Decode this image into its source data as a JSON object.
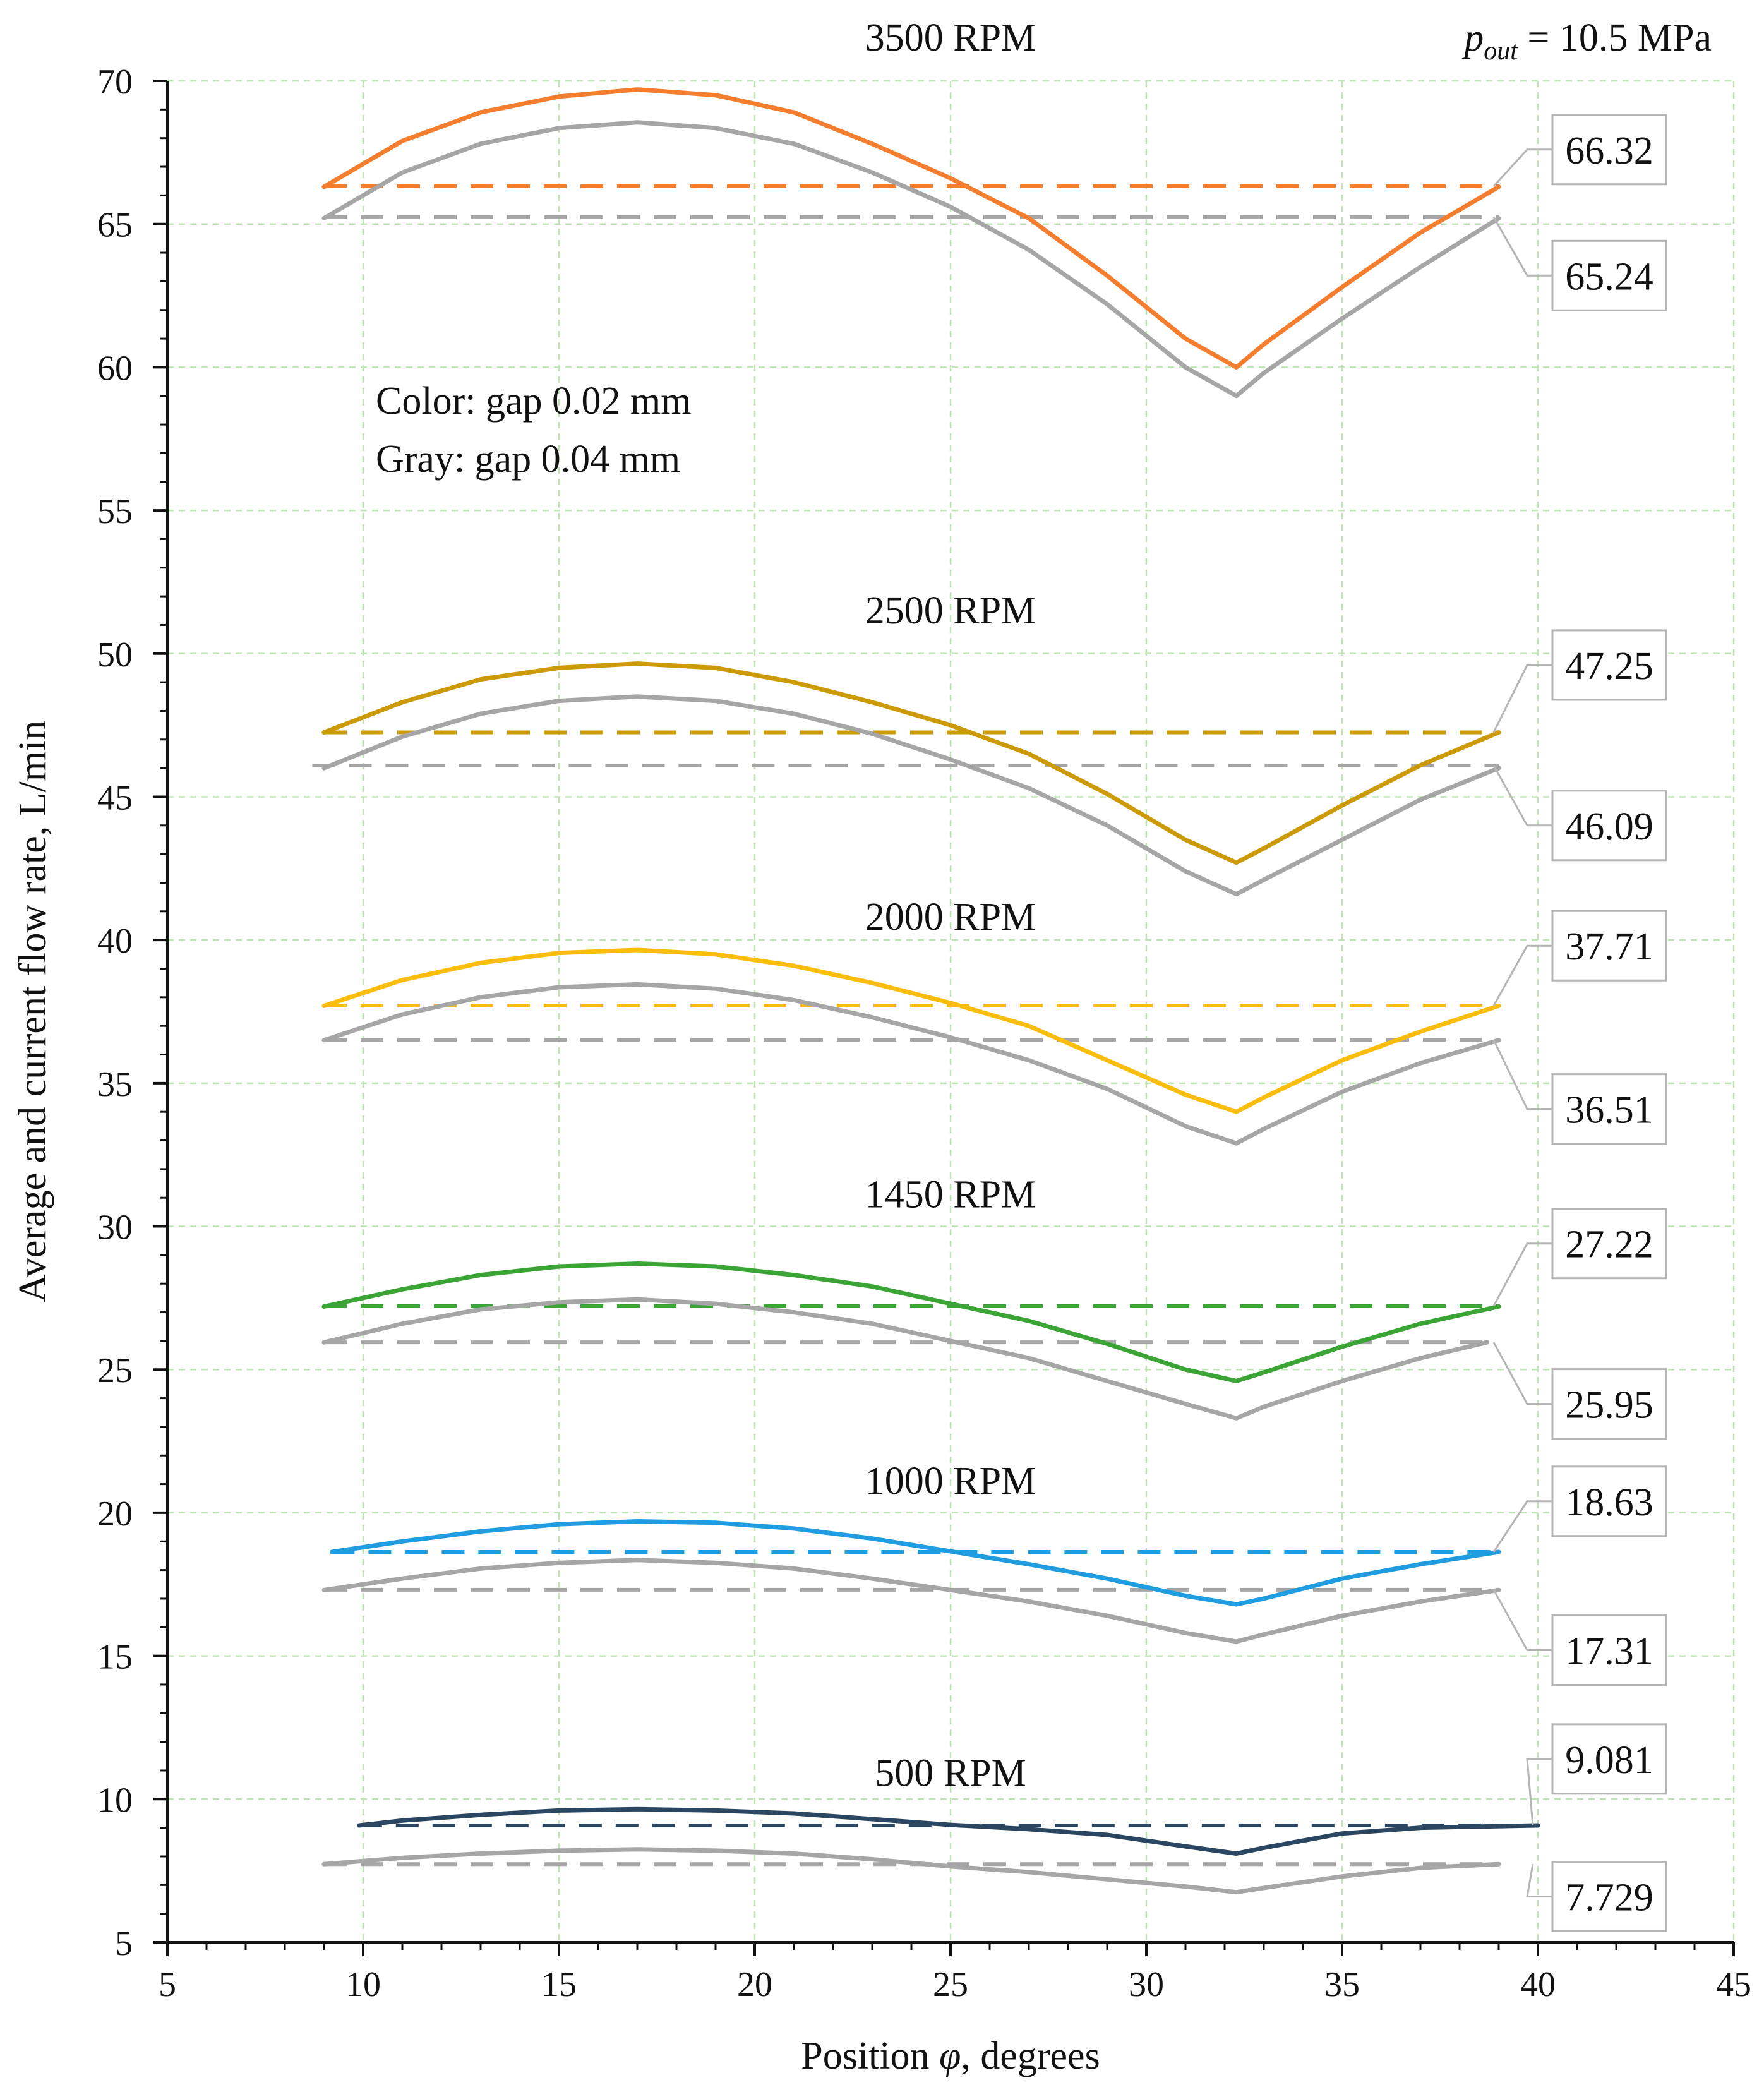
{
  "chart_data": {
    "type": "line",
    "title": "",
    "pressure_label": {
      "symbol": "p",
      "subscript": "out",
      "value": " = 10.5 MPa"
    },
    "xlabel": {
      "prefix": "Position ",
      "symbol": "φ",
      "suffix": ", degrees"
    },
    "ylabel": "Average and current flow rate, L/min",
    "xlim": [
      5,
      45
    ],
    "ylim": [
      5,
      70
    ],
    "xticks": [
      5,
      10,
      15,
      20,
      25,
      30,
      35,
      40,
      45
    ],
    "yticks": [
      5,
      10,
      15,
      20,
      25,
      30,
      35,
      40,
      45,
      50,
      55,
      60,
      65,
      70
    ],
    "grid": true,
    "legend_notes": [
      "Color: gap 0.02 mm",
      "Gray: gap 0.04 mm"
    ],
    "gray_color": "#a6a6a6",
    "groups": [
      {
        "rpm_label": "3500 RPM",
        "label_y": 71.5,
        "color": "#f47e2e",
        "colored": {
          "name": "gap 0.02 mm",
          "avg": 66.32,
          "avg_label": "66.32",
          "x_start": 9,
          "x_end": 39.0,
          "x": [
            9,
            11,
            13,
            15,
            17,
            19,
            21,
            23,
            25,
            27,
            29,
            31,
            32.3,
            33,
            35,
            37,
            39
          ],
          "y": [
            66.3,
            67.9,
            68.9,
            69.45,
            69.7,
            69.5,
            68.9,
            67.8,
            66.6,
            65.2,
            63.2,
            61.0,
            60.0,
            60.8,
            62.8,
            64.7,
            66.3
          ]
        },
        "gray": {
          "name": "gap 0.04 mm",
          "avg": 65.24,
          "avg_label": "65.24",
          "x_start": 9,
          "x_end": 39.0,
          "x": [
            9,
            11,
            13,
            15,
            17,
            19,
            21,
            23,
            25,
            27,
            29,
            31,
            32.3,
            33,
            35,
            37,
            39
          ],
          "y": [
            65.2,
            66.8,
            67.8,
            68.35,
            68.55,
            68.35,
            67.8,
            66.8,
            65.6,
            64.1,
            62.2,
            60.0,
            59.0,
            59.8,
            61.7,
            63.5,
            65.2
          ]
        },
        "callout_top": {
          "value": "66.32",
          "box_y": 67.6
        },
        "callout_bottom": {
          "value": "65.24",
          "box_y": 63.2
        }
      },
      {
        "rpm_label": "2500 RPM",
        "label_y": 51.5,
        "color": "#cc9a06",
        "colored": {
          "name": "gap 0.02 mm",
          "avg": 47.25,
          "avg_label": "47.25",
          "x_start": 9,
          "x_end": 39.0,
          "x": [
            9,
            11,
            13,
            15,
            17,
            19,
            21,
            23,
            25,
            27,
            29,
            31,
            32.3,
            33,
            35,
            37,
            39
          ],
          "y": [
            47.25,
            48.3,
            49.1,
            49.5,
            49.65,
            49.5,
            49.0,
            48.3,
            47.5,
            46.5,
            45.1,
            43.5,
            42.7,
            43.2,
            44.7,
            46.1,
            47.25
          ]
        },
        "gray": {
          "name": "gap 0.04 mm",
          "avg": 46.09,
          "avg_label": "46.09",
          "x_start": 8.7,
          "x_end": 39.0,
          "x": [
            9,
            11,
            13,
            15,
            17,
            19,
            21,
            23,
            25,
            27,
            29,
            31,
            32.3,
            33,
            35,
            37,
            39
          ],
          "y": [
            46.0,
            47.1,
            47.9,
            48.35,
            48.5,
            48.35,
            47.9,
            47.2,
            46.3,
            45.3,
            44.0,
            42.4,
            41.6,
            42.1,
            43.5,
            44.9,
            46.0
          ]
        },
        "callout_top": {
          "value": "47.25",
          "box_y": 49.6
        },
        "callout_bottom": {
          "value": "46.09",
          "box_y": 44.0
        }
      },
      {
        "rpm_label": "2000 RPM",
        "label_y": 40.8,
        "color": "#fbbd0c",
        "colored": {
          "name": "gap 0.02 mm",
          "avg": 37.71,
          "avg_label": "37.71",
          "x_start": 9,
          "x_end": 39.0,
          "x": [
            9,
            11,
            13,
            15,
            17,
            19,
            21,
            23,
            25,
            27,
            29,
            31,
            32.3,
            33,
            35,
            37,
            39
          ],
          "y": [
            37.7,
            38.6,
            39.2,
            39.55,
            39.65,
            39.5,
            39.1,
            38.5,
            37.8,
            37.0,
            35.8,
            34.6,
            34.0,
            34.5,
            35.8,
            36.8,
            37.7
          ]
        },
        "gray": {
          "name": "gap 0.04 mm",
          "avg": 36.51,
          "avg_label": "36.51",
          "x_start": 9,
          "x_end": 39.0,
          "x": [
            9,
            11,
            13,
            15,
            17,
            19,
            21,
            23,
            25,
            27,
            29,
            31,
            32.3,
            33,
            35,
            37,
            39
          ],
          "y": [
            36.5,
            37.4,
            38.0,
            38.35,
            38.45,
            38.3,
            37.9,
            37.3,
            36.6,
            35.8,
            34.8,
            33.5,
            32.9,
            33.4,
            34.7,
            35.7,
            36.5
          ]
        },
        "callout_top": {
          "value": "37.71",
          "box_y": 39.8
        },
        "callout_bottom": {
          "value": "36.51",
          "box_y": 34.1
        }
      },
      {
        "rpm_label": "1450 RPM",
        "label_y": 31.1,
        "color": "#3aa535",
        "colored": {
          "name": "gap 0.02 mm",
          "avg": 27.22,
          "avg_label": "27.22",
          "x_start": 9,
          "x_end": 39.0,
          "x": [
            9,
            11,
            13,
            15,
            17,
            19,
            21,
            23,
            25,
            27,
            29,
            31,
            32.3,
            33,
            35,
            37,
            39
          ],
          "y": [
            27.2,
            27.8,
            28.3,
            28.6,
            28.7,
            28.6,
            28.3,
            27.9,
            27.3,
            26.7,
            25.9,
            25.0,
            24.6,
            24.9,
            25.8,
            26.6,
            27.2
          ]
        },
        "gray": {
          "name": "gap 0.04 mm",
          "avg": 25.95,
          "avg_label": "25.95",
          "x_start": 9,
          "x_end": 38.7,
          "x": [
            9,
            11,
            13,
            15,
            17,
            19,
            21,
            23,
            25,
            27,
            29,
            31,
            32.3,
            33,
            35,
            37,
            38.7
          ],
          "y": [
            25.95,
            26.6,
            27.1,
            27.35,
            27.45,
            27.3,
            27.0,
            26.6,
            26.0,
            25.4,
            24.6,
            23.8,
            23.3,
            23.7,
            24.6,
            25.4,
            25.95
          ]
        },
        "callout_top": {
          "value": "27.22",
          "box_y": 29.4
        },
        "callout_bottom": {
          "value": "25.95",
          "box_y": 23.8
        }
      },
      {
        "rpm_label": "1000 RPM",
        "label_y": 21.1,
        "color": "#1f9de0",
        "colored": {
          "name": "gap 0.02 mm",
          "avg": 18.63,
          "avg_label": "18.63",
          "x_start": 9.2,
          "x_end": 39.0,
          "x": [
            9.2,
            11,
            13,
            15,
            17,
            19,
            21,
            23,
            25,
            27,
            29,
            31,
            32.3,
            33,
            35,
            37,
            39
          ],
          "y": [
            18.63,
            19.0,
            19.35,
            19.6,
            19.7,
            19.65,
            19.45,
            19.1,
            18.65,
            18.2,
            17.7,
            17.1,
            16.8,
            17.0,
            17.7,
            18.2,
            18.63
          ]
        },
        "gray": {
          "name": "gap 0.04 mm",
          "avg": 17.31,
          "avg_label": "17.31",
          "x_start": 9,
          "x_end": 39.0,
          "x": [
            9,
            11,
            13,
            15,
            17,
            19,
            21,
            23,
            25,
            27,
            29,
            31,
            32.3,
            33,
            35,
            37,
            39
          ],
          "y": [
            17.3,
            17.7,
            18.05,
            18.25,
            18.35,
            18.25,
            18.05,
            17.7,
            17.3,
            16.9,
            16.4,
            15.8,
            15.5,
            15.75,
            16.4,
            16.9,
            17.3
          ]
        },
        "callout_top": {
          "value": "18.63",
          "box_y": 20.4
        },
        "callout_bottom": {
          "value": "17.31",
          "box_y": 15.2
        }
      },
      {
        "rpm_label": "500 RPM",
        "label_y": 10.9,
        "color": "#2a4660",
        "colored": {
          "name": "gap 0.02 mm",
          "avg": 9.081,
          "avg_label": "9.081",
          "x_start": 9.9,
          "x_end": 40.0,
          "x": [
            9.9,
            11,
            13,
            15,
            17,
            19,
            21,
            23,
            25,
            27,
            29,
            31,
            32.3,
            33,
            35,
            37,
            40
          ],
          "y": [
            9.08,
            9.25,
            9.45,
            9.6,
            9.65,
            9.6,
            9.5,
            9.3,
            9.1,
            8.95,
            8.75,
            8.35,
            8.1,
            8.3,
            8.8,
            9.0,
            9.08
          ]
        },
        "gray": {
          "name": "gap 0.04 mm",
          "avg": 7.729,
          "avg_label": "7.729",
          "x_start": 9,
          "x_end": 39.0,
          "x": [
            9,
            11,
            13,
            15,
            17,
            19,
            21,
            23,
            25,
            27,
            29,
            31,
            32.3,
            33,
            35,
            37,
            39
          ],
          "y": [
            7.73,
            7.95,
            8.1,
            8.2,
            8.25,
            8.2,
            8.1,
            7.9,
            7.65,
            7.45,
            7.2,
            6.95,
            6.75,
            6.9,
            7.3,
            7.6,
            7.73
          ]
        },
        "callout_top": {
          "value": "9.081",
          "box_y": 11.4
        },
        "callout_bottom": {
          "value": "7.729",
          "box_y": 6.6
        }
      }
    ]
  }
}
